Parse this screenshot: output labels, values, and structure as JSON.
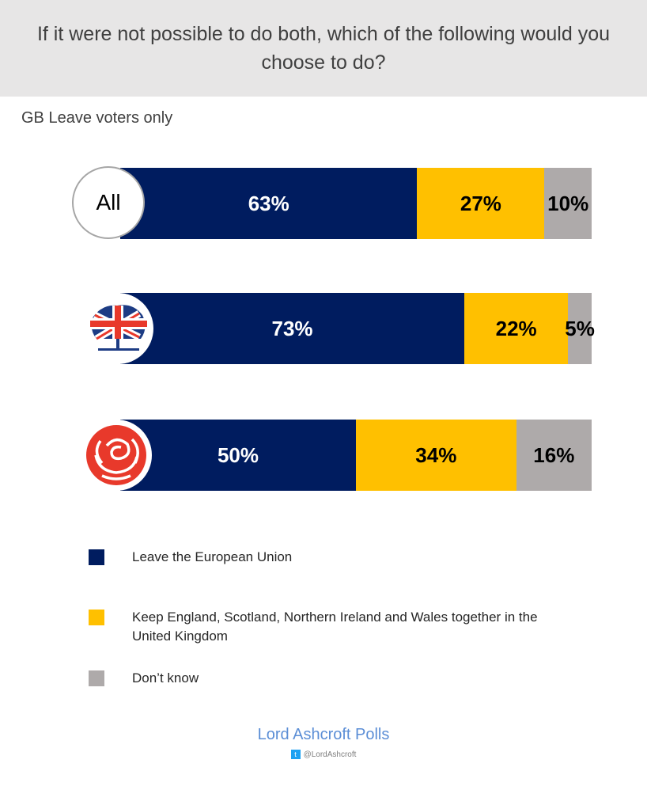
{
  "chart_data": {
    "type": "bar",
    "orientation": "horizontal-stacked-100",
    "title": "If it were not possible to do both, which of the following would you choose to do?",
    "subtitle": "GB Leave voters only",
    "series": [
      {
        "name": "Leave the European Union",
        "color": "#001c5f"
      },
      {
        "name": "Keep England, Scotland, Northern Ireland and Wales together in the United Kingdom",
        "color": "#ffc000"
      },
      {
        "name": "Don’t know",
        "color": "#aeaaaa"
      }
    ],
    "rows": [
      {
        "label": "All",
        "icon": null,
        "values": [
          63,
          27,
          10
        ],
        "labels": [
          "63%",
          "27%",
          "10%"
        ]
      },
      {
        "label": null,
        "icon": "conservative-tree-logo-icon",
        "values": [
          73,
          22,
          5
        ],
        "labels": [
          "73%",
          "22%",
          "5%"
        ]
      },
      {
        "label": null,
        "icon": "labour-rose-logo-icon",
        "values": [
          50,
          34,
          16
        ],
        "labels": [
          "50%",
          "34%",
          "16%"
        ]
      }
    ],
    "xlim": [
      0,
      100
    ],
    "legend_position": "bottom-left"
  },
  "footer": {
    "brand": "Lord Ashcroft Polls",
    "handle": "@LordAshcroft"
  }
}
